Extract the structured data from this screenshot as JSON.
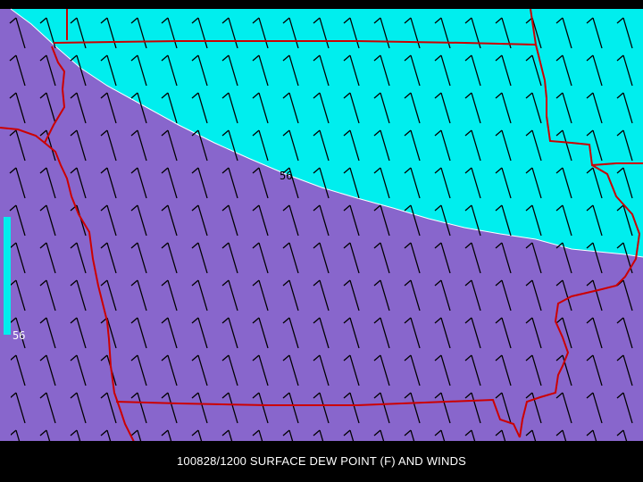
{
  "title": "100828/1200 SURFACE DEW POINT (F) AND WINDS",
  "contour": {
    "value_label": "56",
    "label_on_map": "56"
  },
  "colorbar": {
    "tick_label": "56",
    "color_above": "#00eeee",
    "color_below": "#8866cc"
  },
  "colors": {
    "moist_region": "#00eeee",
    "dry_region": "#8866cc",
    "state_borders": "#cc0000",
    "wind_barbs": "#000000",
    "contour_line": "#ffffff",
    "background": "#000000",
    "caption_text": "#ffffff"
  },
  "layers": [
    "dew-point-fill",
    "dew-point-contour",
    "wind-barbs",
    "state-boundaries"
  ]
}
